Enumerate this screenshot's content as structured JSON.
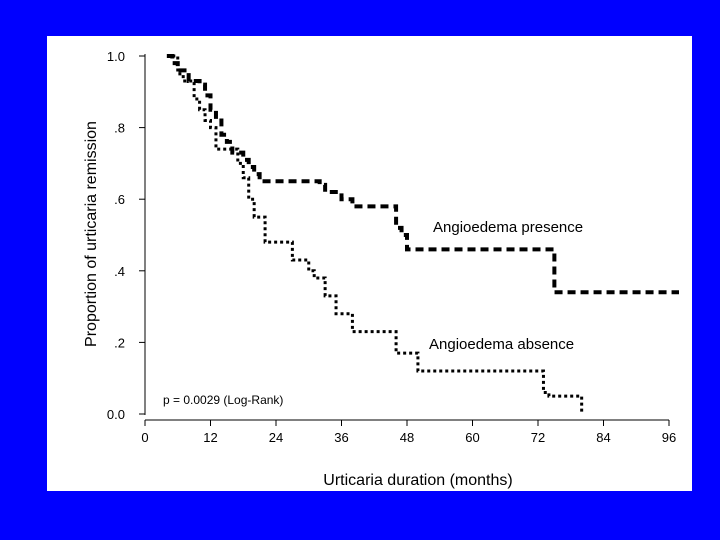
{
  "colors": {
    "background": "#0000ff",
    "panel": "#ffffff",
    "ink": "#000000"
  },
  "chart_data": {
    "type": "line",
    "subtype": "kaplan-meier-step",
    "title": "",
    "xlabel": "Urticaria duration (months)",
    "ylabel": "Proportion of urticaria remission",
    "xlim": [
      0,
      96
    ],
    "ylim": [
      0,
      1
    ],
    "x_ticks": [
      0,
      12,
      24,
      36,
      48,
      60,
      72,
      84,
      96
    ],
    "x_tick_labels": [
      "0",
      "12",
      "24",
      "36",
      "48",
      "60",
      "72",
      "84",
      "96"
    ],
    "y_ticks": [
      0,
      0.2,
      0.4,
      0.6,
      0.8,
      1.0
    ],
    "y_tick_labels": [
      "0.0",
      ".2",
      ".4",
      ".6",
      ".8",
      "1.0"
    ],
    "grid": false,
    "series": [
      {
        "name": "Angioedema presence",
        "style": "dashed",
        "x": [
          4,
          5,
          6,
          8,
          10,
          11,
          12,
          13,
          14,
          15,
          16,
          18,
          19,
          20,
          21,
          26,
          32,
          33,
          34,
          36,
          38,
          43,
          45,
          46,
          47,
          48,
          74,
          75,
          98
        ],
        "y": [
          1.0,
          0.98,
          0.96,
          0.93,
          0.92,
          0.89,
          0.85,
          0.82,
          0.78,
          0.76,
          0.73,
          0.71,
          0.69,
          0.67,
          0.65,
          0.65,
          0.64,
          0.62,
          0.62,
          0.6,
          0.58,
          0.58,
          0.58,
          0.52,
          0.5,
          0.46,
          0.46,
          0.34,
          0.34
        ]
      },
      {
        "name": "Angioedema absence",
        "style": "dotted",
        "x": [
          5,
          6,
          7,
          9,
          10,
          11,
          12,
          13,
          17,
          18,
          19,
          20,
          22,
          27,
          30,
          31,
          33,
          35,
          38,
          42,
          46,
          50,
          52,
          68,
          73,
          74,
          80
        ],
        "y": [
          1.0,
          0.95,
          0.93,
          0.88,
          0.85,
          0.82,
          0.8,
          0.74,
          0.7,
          0.66,
          0.6,
          0.55,
          0.48,
          0.43,
          0.4,
          0.38,
          0.33,
          0.28,
          0.23,
          0.23,
          0.17,
          0.12,
          0.12,
          0.12,
          0.06,
          0.05,
          0.0
        ]
      }
    ],
    "annotations": {
      "presence_label": "Angioedema presence",
      "absence_label": "Angioedema absence",
      "pvalue": "p = 0.0029 (Log-Rank)"
    }
  }
}
